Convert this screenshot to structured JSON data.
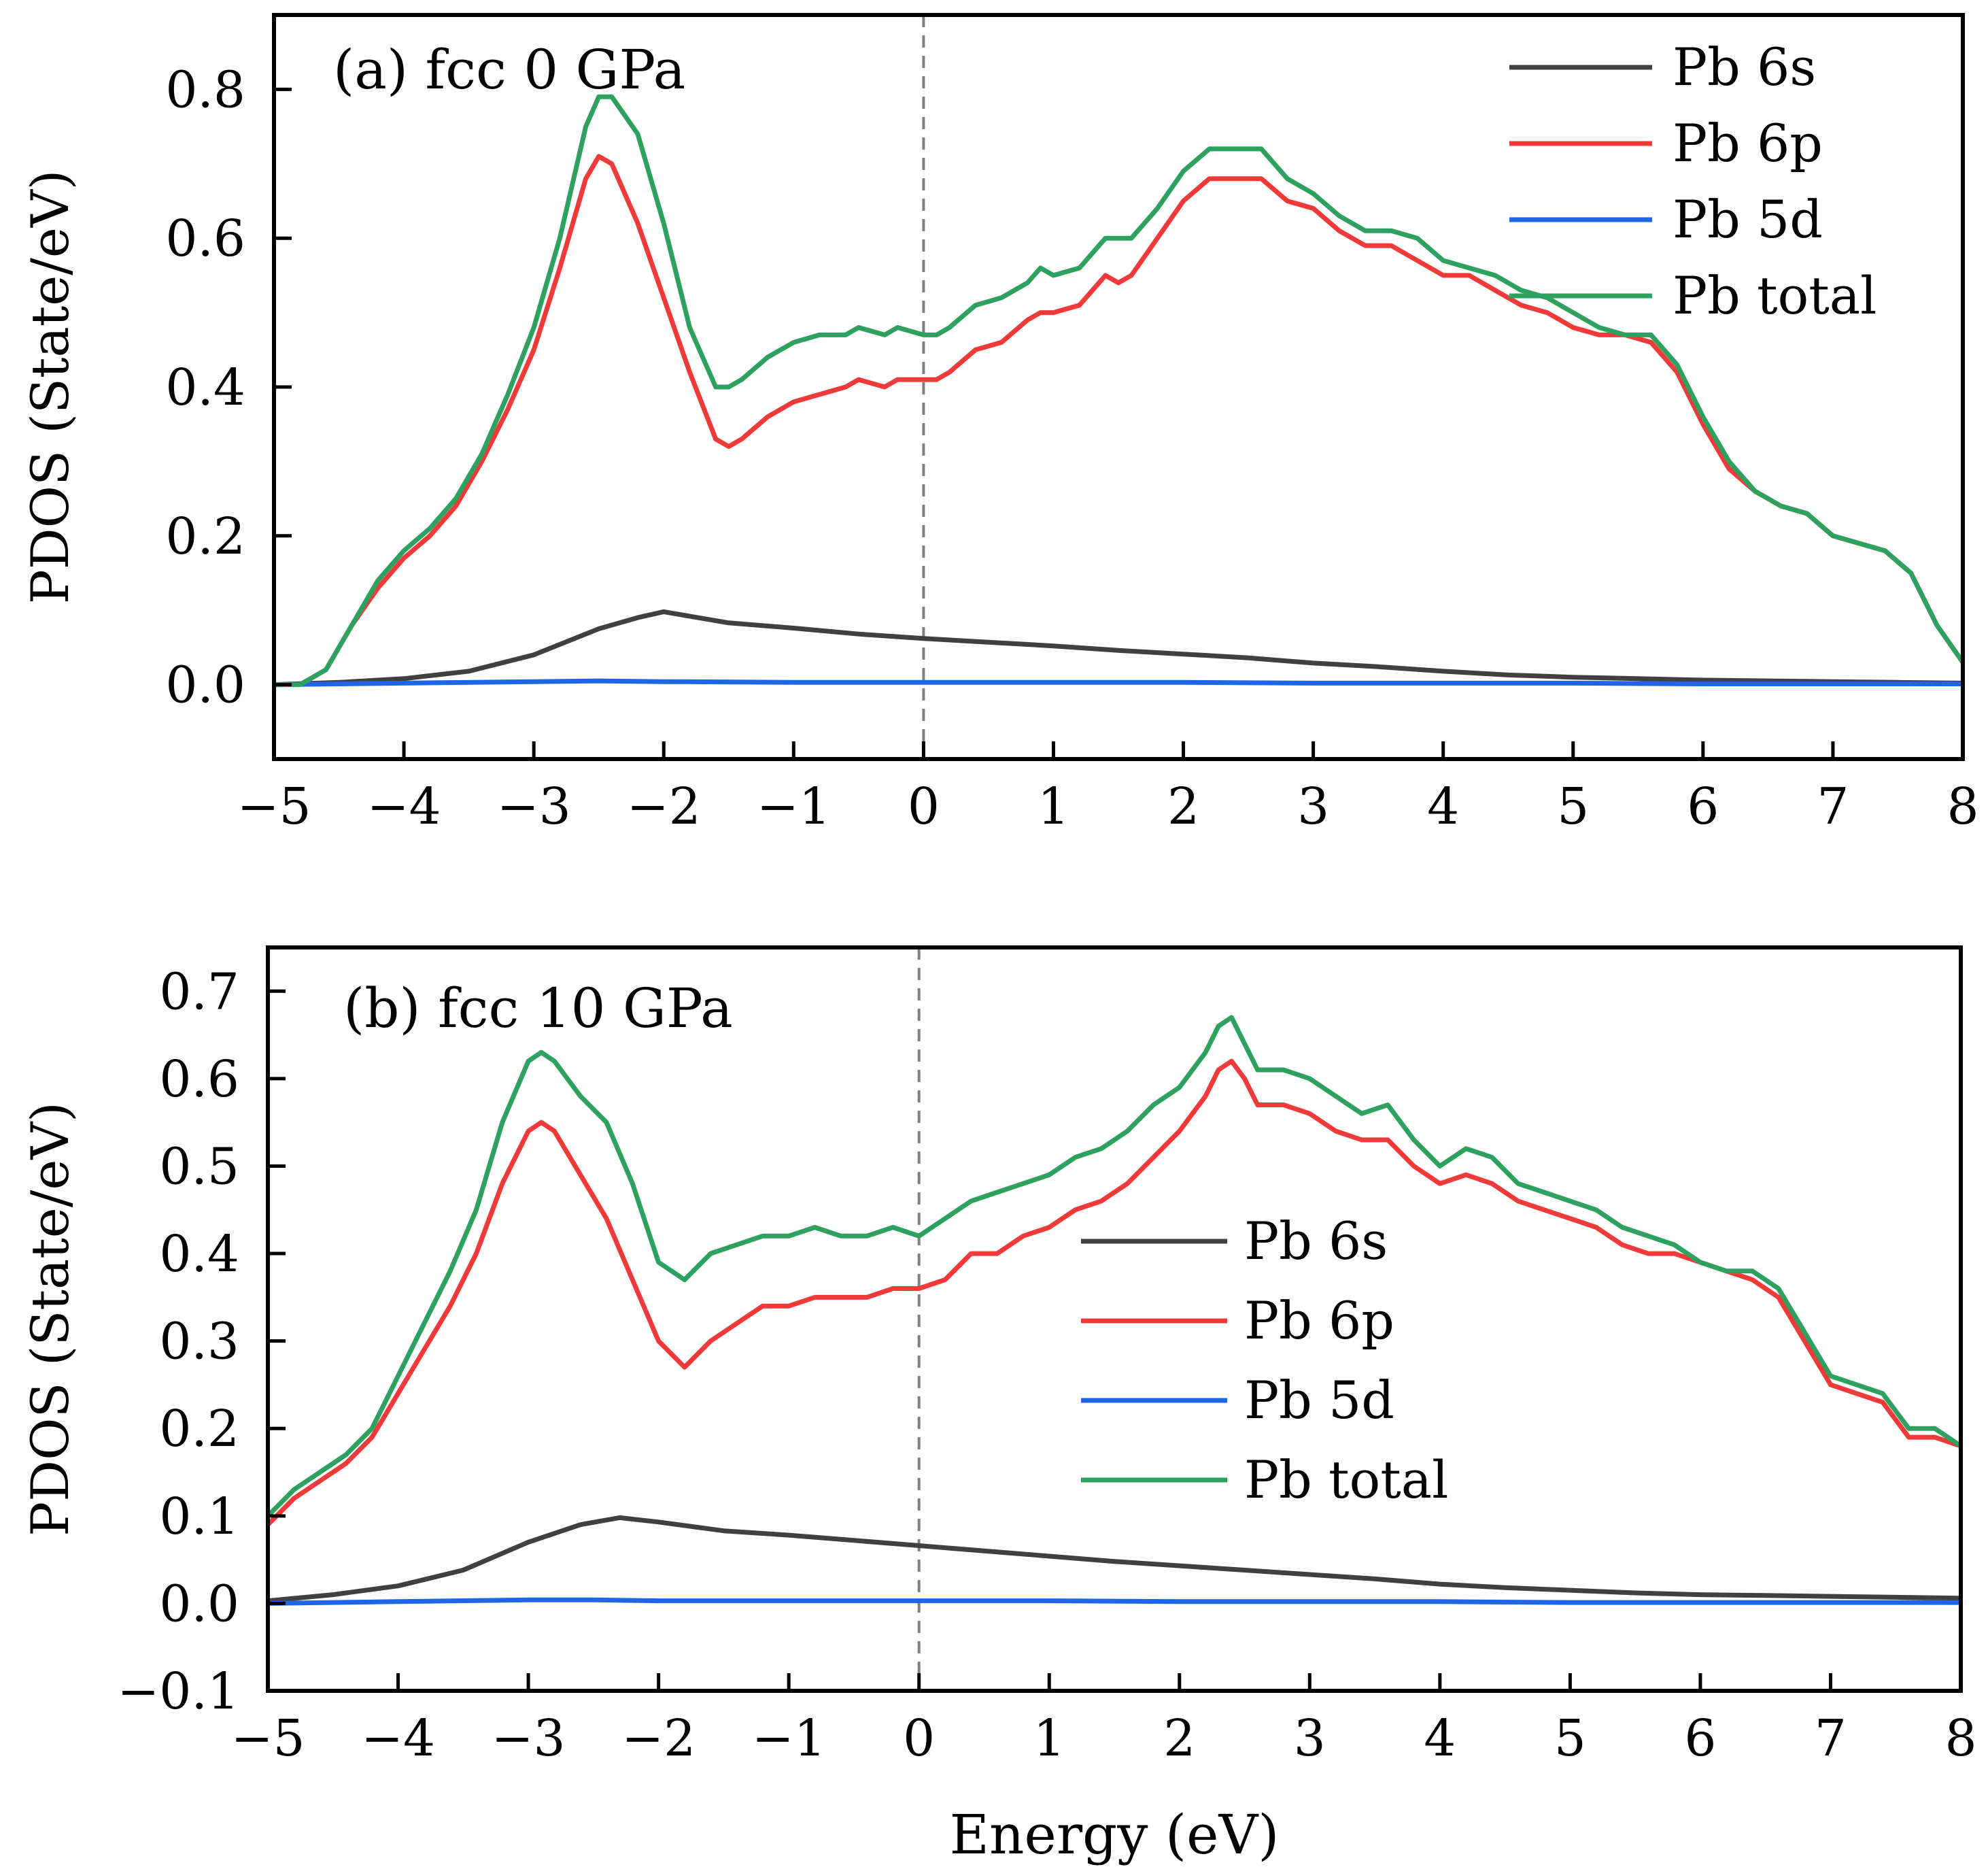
{
  "chart_data": [
    {
      "type": "line",
      "panel": "a",
      "annotation": "(a) fcc 0 GPa",
      "xlabel": "",
      "ylabel": "PDOS (State/eV)",
      "xlim": [
        -5,
        8
      ],
      "ylim": [
        -0.1,
        0.9
      ],
      "xticks": [
        -5,
        -4,
        -3,
        -2,
        -1,
        0,
        1,
        2,
        3,
        4,
        5,
        6,
        7,
        8
      ],
      "xtick_labels": [
        "−5",
        "−4",
        "−3",
        "−2",
        "−1",
        "0",
        "1",
        "2",
        "3",
        "4",
        "5",
        "6",
        "7",
        "8"
      ],
      "yticks": [
        0.0,
        0.2,
        0.4,
        0.6,
        0.8
      ],
      "ytick_labels": [
        "0.0",
        "0.2",
        "0.4",
        "0.6",
        "0.8"
      ],
      "fermi_line_x": 0,
      "legend_position": "top-right",
      "series": [
        {
          "name": "Pb 6s",
          "color": "#404040",
          "x": [
            -5,
            -4.5,
            -4,
            -3.5,
            -3,
            -2.5,
            -2.2,
            -2,
            -1.8,
            -1.5,
            -1,
            -0.5,
            0,
            0.5,
            1,
            1.5,
            2,
            2.5,
            3,
            3.5,
            4,
            4.5,
            5,
            5.5,
            6,
            6.5,
            7,
            7.5,
            8
          ],
          "y": [
            0.0,
            0.003,
            0.008,
            0.018,
            0.04,
            0.075,
            0.09,
            0.098,
            0.092,
            0.083,
            0.076,
            0.068,
            0.062,
            0.057,
            0.052,
            0.046,
            0.041,
            0.036,
            0.029,
            0.024,
            0.018,
            0.013,
            0.01,
            0.008,
            0.006,
            0.005,
            0.004,
            0.003,
            0.002
          ]
        },
        {
          "name": "Pb 6p",
          "color": "#f03a3a",
          "x": [
            -5,
            -4.8,
            -4.6,
            -4.4,
            -4.2,
            -4,
            -3.8,
            -3.6,
            -3.4,
            -3.2,
            -3,
            -2.8,
            -2.6,
            -2.5,
            -2.4,
            -2.2,
            -2,
            -1.8,
            -1.6,
            -1.5,
            -1.4,
            -1.2,
            -1,
            -0.8,
            -0.6,
            -0.5,
            -0.3,
            -0.2,
            0,
            0.1,
            0.2,
            0.4,
            0.6,
            0.8,
            0.9,
            1,
            1.2,
            1.3,
            1.4,
            1.5,
            1.6,
            1.8,
            2,
            2.2,
            2.4,
            2.6,
            2.8,
            3,
            3.2,
            3.4,
            3.6,
            3.8,
            4,
            4.2,
            4.4,
            4.6,
            4.8,
            5,
            5.2,
            5.4,
            5.6,
            5.8,
            6,
            6.2,
            6.4,
            6.6,
            6.8,
            7,
            7.2,
            7.4,
            7.6,
            7.8,
            8
          ],
          "y": [
            0.0,
            0.0,
            0.02,
            0.08,
            0.13,
            0.17,
            0.2,
            0.24,
            0.3,
            0.37,
            0.45,
            0.56,
            0.68,
            0.71,
            0.7,
            0.62,
            0.52,
            0.42,
            0.33,
            0.32,
            0.33,
            0.36,
            0.38,
            0.39,
            0.4,
            0.41,
            0.4,
            0.41,
            0.41,
            0.41,
            0.42,
            0.45,
            0.46,
            0.49,
            0.5,
            0.5,
            0.51,
            0.53,
            0.55,
            0.54,
            0.55,
            0.6,
            0.65,
            0.68,
            0.68,
            0.68,
            0.65,
            0.64,
            0.61,
            0.59,
            0.59,
            0.57,
            0.55,
            0.55,
            0.53,
            0.51,
            0.5,
            0.48,
            0.47,
            0.47,
            0.46,
            0.42,
            0.35,
            0.29,
            0.26,
            0.24,
            0.23,
            0.2,
            0.19,
            0.18,
            0.15,
            0.08,
            0.03
          ]
        },
        {
          "name": "Pb 5d",
          "color": "#1e66e6",
          "x": [
            -5,
            -4,
            -3,
            -2.5,
            -2,
            -1,
            0,
            1,
            2,
            3,
            4,
            5,
            6,
            7,
            8
          ],
          "y": [
            0.0,
            0.002,
            0.004,
            0.005,
            0.004,
            0.003,
            0.003,
            0.003,
            0.003,
            0.002,
            0.002,
            0.002,
            0.001,
            0.001,
            0.001
          ]
        },
        {
          "name": "Pb total",
          "color": "#2ea060",
          "x": [
            -5,
            -4.8,
            -4.6,
            -4.4,
            -4.2,
            -4,
            -3.8,
            -3.6,
            -3.4,
            -3.2,
            -3,
            -2.8,
            -2.6,
            -2.5,
            -2.4,
            -2.2,
            -2,
            -1.8,
            -1.6,
            -1.5,
            -1.4,
            -1.2,
            -1,
            -0.8,
            -0.6,
            -0.5,
            -0.3,
            -0.2,
            0,
            0.1,
            0.2,
            0.4,
            0.6,
            0.8,
            0.9,
            1,
            1.2,
            1.3,
            1.4,
            1.5,
            1.6,
            1.8,
            2,
            2.2,
            2.4,
            2.6,
            2.8,
            3,
            3.2,
            3.4,
            3.6,
            3.8,
            4,
            4.2,
            4.4,
            4.6,
            4.8,
            5,
            5.2,
            5.4,
            5.6,
            5.8,
            6,
            6.2,
            6.4,
            6.6,
            6.8,
            7,
            7.2,
            7.4,
            7.6,
            7.8,
            8
          ],
          "y": [
            0.0,
            0.0,
            0.02,
            0.08,
            0.14,
            0.18,
            0.21,
            0.25,
            0.31,
            0.39,
            0.48,
            0.6,
            0.75,
            0.79,
            0.79,
            0.74,
            0.62,
            0.48,
            0.4,
            0.4,
            0.41,
            0.44,
            0.46,
            0.47,
            0.47,
            0.48,
            0.47,
            0.48,
            0.47,
            0.47,
            0.48,
            0.51,
            0.52,
            0.54,
            0.56,
            0.55,
            0.56,
            0.58,
            0.6,
            0.6,
            0.6,
            0.64,
            0.69,
            0.72,
            0.72,
            0.72,
            0.68,
            0.66,
            0.63,
            0.61,
            0.61,
            0.6,
            0.57,
            0.56,
            0.55,
            0.53,
            0.52,
            0.5,
            0.48,
            0.47,
            0.47,
            0.43,
            0.36,
            0.3,
            0.26,
            0.24,
            0.23,
            0.2,
            0.19,
            0.18,
            0.15,
            0.08,
            0.03
          ]
        }
      ]
    },
    {
      "type": "line",
      "panel": "b",
      "annotation": "(b) fcc 10 GPa",
      "xlabel": "Energy (eV)",
      "ylabel": "PDOS (State/eV)",
      "xlim": [
        -5,
        8
      ],
      "ylim": [
        -0.1,
        0.75
      ],
      "xticks": [
        -5,
        -4,
        -3,
        -2,
        -1,
        0,
        1,
        2,
        3,
        4,
        5,
        6,
        7,
        8
      ],
      "xtick_labels": [
        "−5",
        "−4",
        "−3",
        "−2",
        "−1",
        "0",
        "1",
        "2",
        "3",
        "4",
        "5",
        "6",
        "7",
        "8"
      ],
      "yticks": [
        -0.1,
        0.0,
        0.1,
        0.2,
        0.3,
        0.4,
        0.5,
        0.6,
        0.7
      ],
      "ytick_labels": [
        "−0.1",
        "0.0",
        "0.1",
        "0.2",
        "0.3",
        "0.4",
        "0.5",
        "0.6",
        "0.7"
      ],
      "fermi_line_x": 0,
      "legend_position": "center",
      "series": [
        {
          "name": "Pb 6s",
          "color": "#404040",
          "x": [
            -5,
            -4.5,
            -4,
            -3.5,
            -3,
            -2.6,
            -2.3,
            -2,
            -1.5,
            -1,
            -0.5,
            0,
            0.5,
            1,
            1.5,
            2,
            2.5,
            3,
            3.5,
            4,
            4.5,
            5,
            5.5,
            6,
            6.5,
            7,
            7.5,
            8
          ],
          "y": [
            0.003,
            0.01,
            0.02,
            0.038,
            0.07,
            0.09,
            0.098,
            0.093,
            0.083,
            0.078,
            0.072,
            0.066,
            0.06,
            0.054,
            0.048,
            0.043,
            0.038,
            0.033,
            0.028,
            0.022,
            0.018,
            0.015,
            0.012,
            0.01,
            0.009,
            0.008,
            0.007,
            0.006
          ]
        },
        {
          "name": "Pb 6p",
          "color": "#f03a3a",
          "x": [
            -5,
            -4.8,
            -4.6,
            -4.4,
            -4.2,
            -4,
            -3.8,
            -3.6,
            -3.4,
            -3.2,
            -3,
            -2.9,
            -2.8,
            -2.6,
            -2.4,
            -2.2,
            -2,
            -1.8,
            -1.6,
            -1.4,
            -1.2,
            -1,
            -0.8,
            -0.6,
            -0.4,
            -0.2,
            0,
            0.2,
            0.4,
            0.6,
            0.8,
            1,
            1.2,
            1.4,
            1.6,
            1.8,
            2,
            2.2,
            2.3,
            2.4,
            2.5,
            2.6,
            2.8,
            3,
            3.2,
            3.4,
            3.6,
            3.8,
            4,
            4.2,
            4.4,
            4.6,
            4.8,
            5,
            5.2,
            5.4,
            5.6,
            5.8,
            6,
            6.2,
            6.4,
            6.6,
            6.8,
            7,
            7.2,
            7.4,
            7.6,
            7.8,
            8
          ],
          "y": [
            0.09,
            0.12,
            0.14,
            0.16,
            0.19,
            0.24,
            0.29,
            0.34,
            0.4,
            0.48,
            0.54,
            0.55,
            0.54,
            0.49,
            0.44,
            0.37,
            0.3,
            0.27,
            0.3,
            0.32,
            0.34,
            0.34,
            0.35,
            0.35,
            0.35,
            0.36,
            0.36,
            0.37,
            0.4,
            0.4,
            0.42,
            0.43,
            0.45,
            0.46,
            0.48,
            0.51,
            0.54,
            0.58,
            0.61,
            0.62,
            0.6,
            0.57,
            0.57,
            0.56,
            0.54,
            0.53,
            0.53,
            0.5,
            0.48,
            0.49,
            0.48,
            0.46,
            0.45,
            0.44,
            0.43,
            0.41,
            0.4,
            0.4,
            0.39,
            0.38,
            0.37,
            0.35,
            0.3,
            0.25,
            0.24,
            0.23,
            0.19,
            0.19,
            0.18
          ]
        },
        {
          "name": "Pb 5d",
          "color": "#1e66e6",
          "x": [
            -5,
            -4,
            -3,
            -2.5,
            -2,
            -1,
            0,
            1,
            2,
            3,
            4,
            5,
            6,
            7,
            8
          ],
          "y": [
            0.0,
            0.002,
            0.004,
            0.004,
            0.003,
            0.003,
            0.003,
            0.003,
            0.002,
            0.002,
            0.002,
            0.001,
            0.001,
            0.001,
            0.001
          ]
        },
        {
          "name": "Pb total",
          "color": "#2ea060",
          "x": [
            -5,
            -4.8,
            -4.6,
            -4.4,
            -4.2,
            -4,
            -3.8,
            -3.6,
            -3.4,
            -3.2,
            -3,
            -2.9,
            -2.8,
            -2.6,
            -2.4,
            -2.2,
            -2,
            -1.8,
            -1.6,
            -1.4,
            -1.2,
            -1,
            -0.8,
            -0.6,
            -0.4,
            -0.2,
            0,
            0.2,
            0.4,
            0.6,
            0.8,
            1,
            1.2,
            1.4,
            1.6,
            1.8,
            2,
            2.2,
            2.3,
            2.4,
            2.5,
            2.6,
            2.8,
            3,
            3.2,
            3.4,
            3.6,
            3.8,
            4,
            4.2,
            4.4,
            4.6,
            4.8,
            5,
            5.2,
            5.4,
            5.6,
            5.8,
            6,
            6.2,
            6.4,
            6.6,
            6.8,
            7,
            7.2,
            7.4,
            7.6,
            7.8,
            8
          ],
          "y": [
            0.1,
            0.13,
            0.15,
            0.17,
            0.2,
            0.26,
            0.32,
            0.38,
            0.45,
            0.55,
            0.62,
            0.63,
            0.62,
            0.58,
            0.55,
            0.48,
            0.39,
            0.37,
            0.4,
            0.41,
            0.42,
            0.42,
            0.43,
            0.42,
            0.42,
            0.43,
            0.42,
            0.44,
            0.46,
            0.47,
            0.48,
            0.49,
            0.51,
            0.52,
            0.54,
            0.57,
            0.59,
            0.63,
            0.66,
            0.67,
            0.64,
            0.61,
            0.61,
            0.6,
            0.58,
            0.56,
            0.57,
            0.53,
            0.5,
            0.52,
            0.51,
            0.48,
            0.47,
            0.46,
            0.45,
            0.43,
            0.42,
            0.41,
            0.39,
            0.38,
            0.38,
            0.36,
            0.31,
            0.26,
            0.25,
            0.24,
            0.2,
            0.2,
            0.18
          ]
        }
      ]
    }
  ]
}
